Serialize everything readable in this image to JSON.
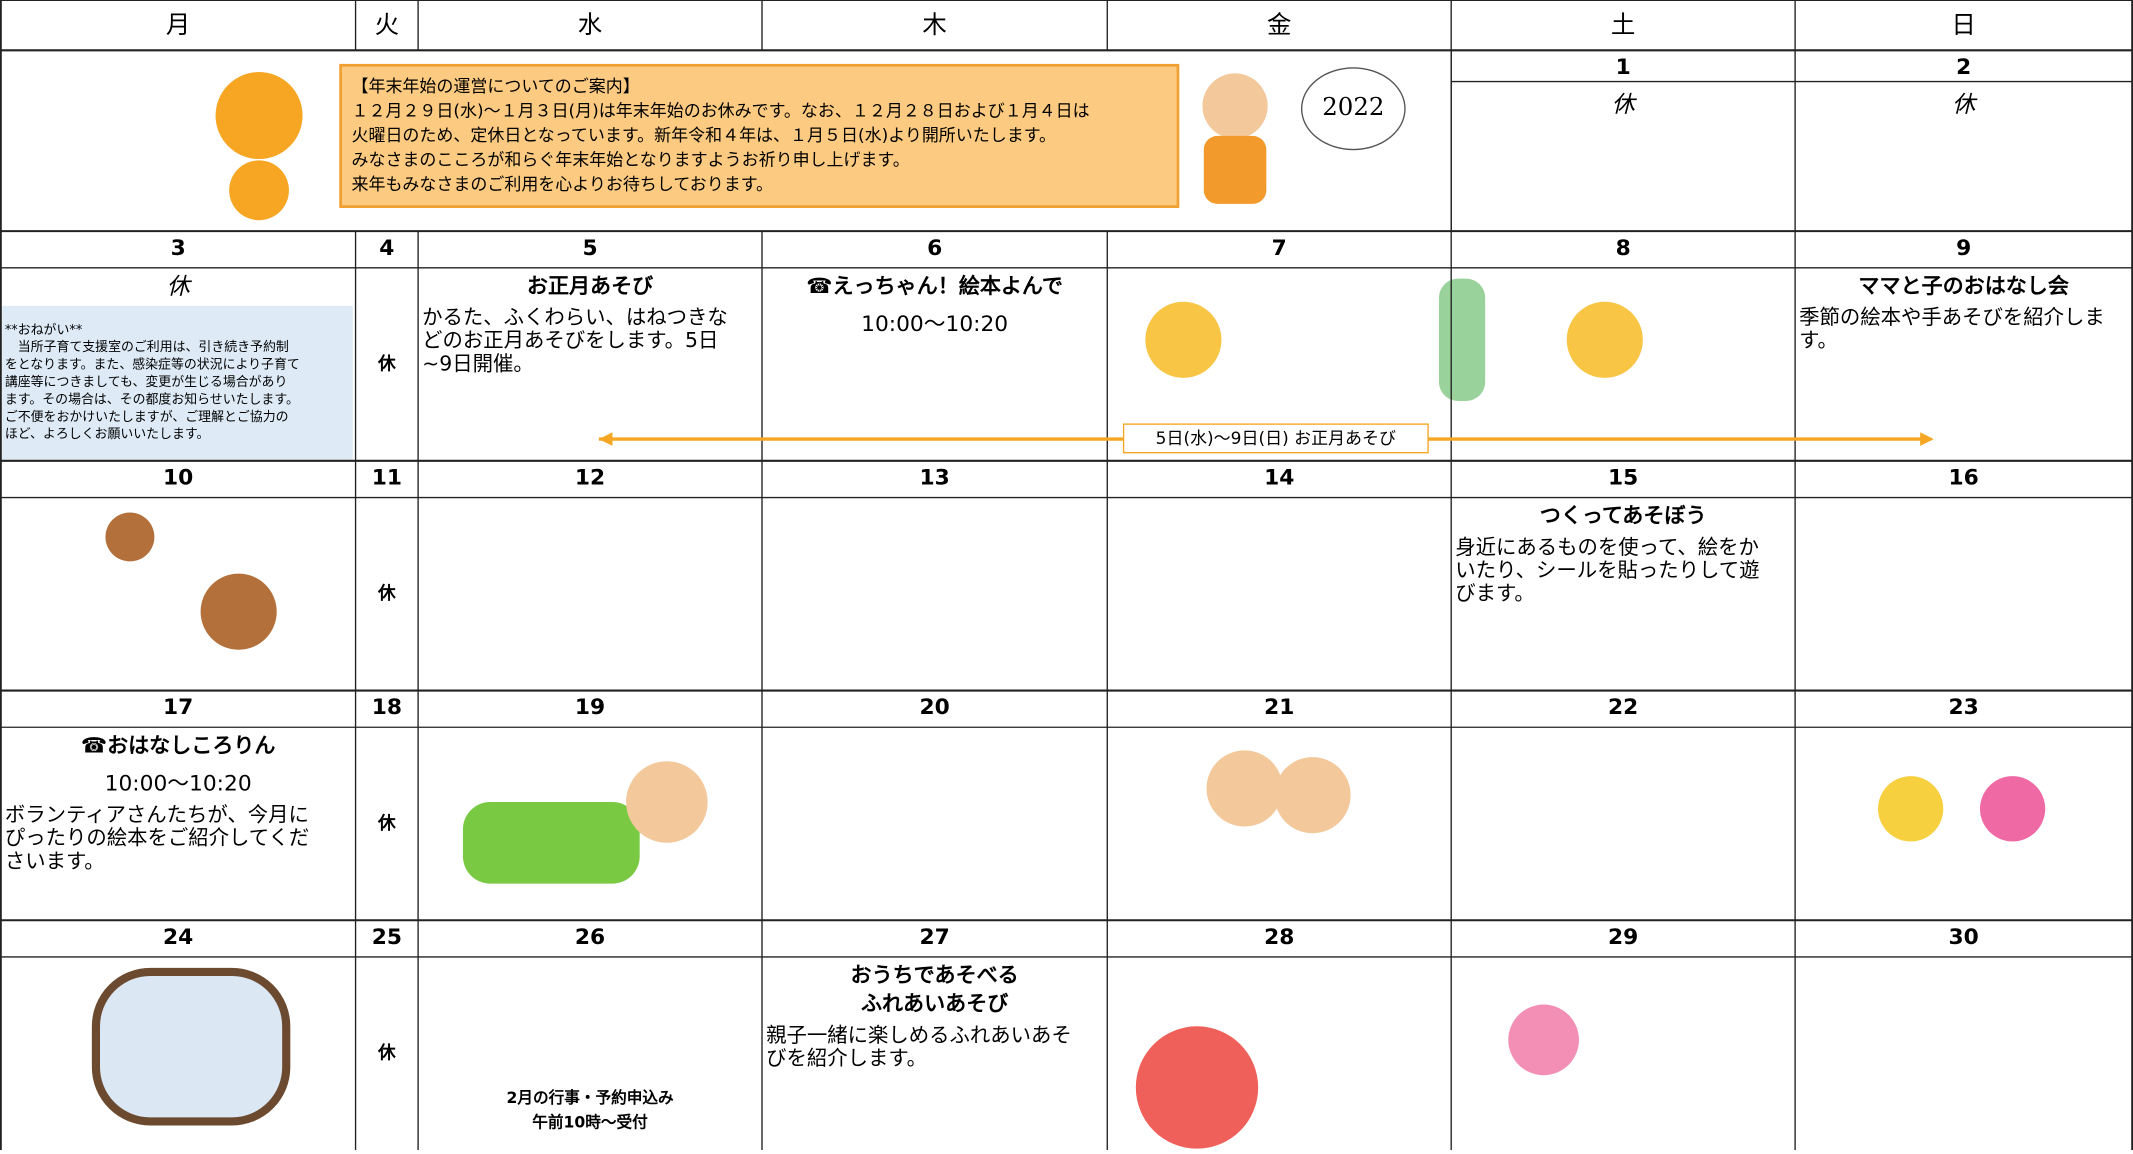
{
  "weekdays": [
    "月",
    "火",
    "水",
    "木",
    "金",
    "土",
    "日"
  ],
  "notice": [
    "【年末年始の運営についてのご案内】",
    "１２月２９日(水)～１月３日(月)は年末年始のお休みです。なお、１２月２８日および１月４日は",
    "火曜日のため、定休日となっています。新年令和４年は、１月５日(水)より開所いたします。",
    "みなさまのこころが和らぐ年末年始となりますようお祈り申し上げます。",
    "来年もみなさまのご利用を心よりお待ちしております。"
  ],
  "badge": "2022",
  "weeks": [
    {
      "dates": [
        null,
        null,
        null,
        null,
        null,
        "1",
        "2"
      ],
      "cells": [
        null,
        null,
        null,
        null,
        null,
        {
          "closed": "休"
        },
        {
          "closed": "休"
        }
      ]
    },
    {
      "dates": [
        "3",
        "4",
        "5",
        "6",
        "7",
        "8",
        "9"
      ],
      "banner": "5日(水)～9日(日)  お正月あそび",
      "cells": [
        {
          "closed": "休",
          "note": [
            "**おねがい**",
            "　当所子育て支援室のご利用は、引き続き予約制",
            "をとなります。また、感染症等の状況により子育て",
            "講座等につきましても、変更が生じる場合があり",
            "ます。その場合は、その都度お知らせいたします。",
            "ご不便をおかけいたしますが、ご理解とご協力の",
            "ほど、よろしくお願いいたします。"
          ]
        },
        {
          "closed": "休"
        },
        {
          "title": [
            "お正月あそび"
          ],
          "body": [
            "かるた、ふくわらい、はねつきな",
            "どのお正月あそびをします。5日",
            "~9日開催。"
          ]
        },
        {
          "title": [
            "☎えっちゃん！絵本よんで"
          ],
          "time": "10:00～10:20"
        },
        null,
        null,
        {
          "title": [
            "ママと子のおはなし会"
          ],
          "body": [
            "季節の絵本や手あそびを紹介しま",
            "す。"
          ]
        }
      ]
    },
    {
      "dates": [
        "10",
        "11",
        "12",
        "13",
        "14",
        "15",
        "16"
      ],
      "cells": [
        null,
        {
          "closed": "休"
        },
        null,
        null,
        null,
        {
          "title": [
            "つくってあそぼう"
          ],
          "body": [
            "身近にあるものを使って、絵をか",
            "いたり、シールを貼ったりして遊",
            "びます。"
          ]
        },
        null
      ]
    },
    {
      "dates": [
        "17",
        "18",
        "19",
        "20",
        "21",
        "22",
        "23"
      ],
      "cells": [
        {
          "title": [
            "☎おはなしころりん"
          ],
          "time": "10:00～10:20",
          "body": [
            "ボランティアさんたちが、今月に",
            "ぴったりの絵本をご紹介してくだ",
            "さいます。"
          ]
        },
        {
          "closed": "休"
        },
        null,
        null,
        null,
        null,
        null
      ]
    },
    {
      "dates": [
        "24",
        "25",
        "26",
        "27",
        "28",
        "29",
        "30"
      ],
      "cells": [
        null,
        {
          "closed": "休"
        },
        {
          "footer": [
            "2月の行事・予約申込み",
            "午前10時～受付"
          ]
        },
        {
          "title": [
            "おうちであそべる",
            "ふれあいあそび"
          ],
          "body": [
            "親子一緒に楽しめるふれあいあそ",
            "びを紹介します。"
          ]
        },
        null,
        null,
        null
      ]
    }
  ]
}
